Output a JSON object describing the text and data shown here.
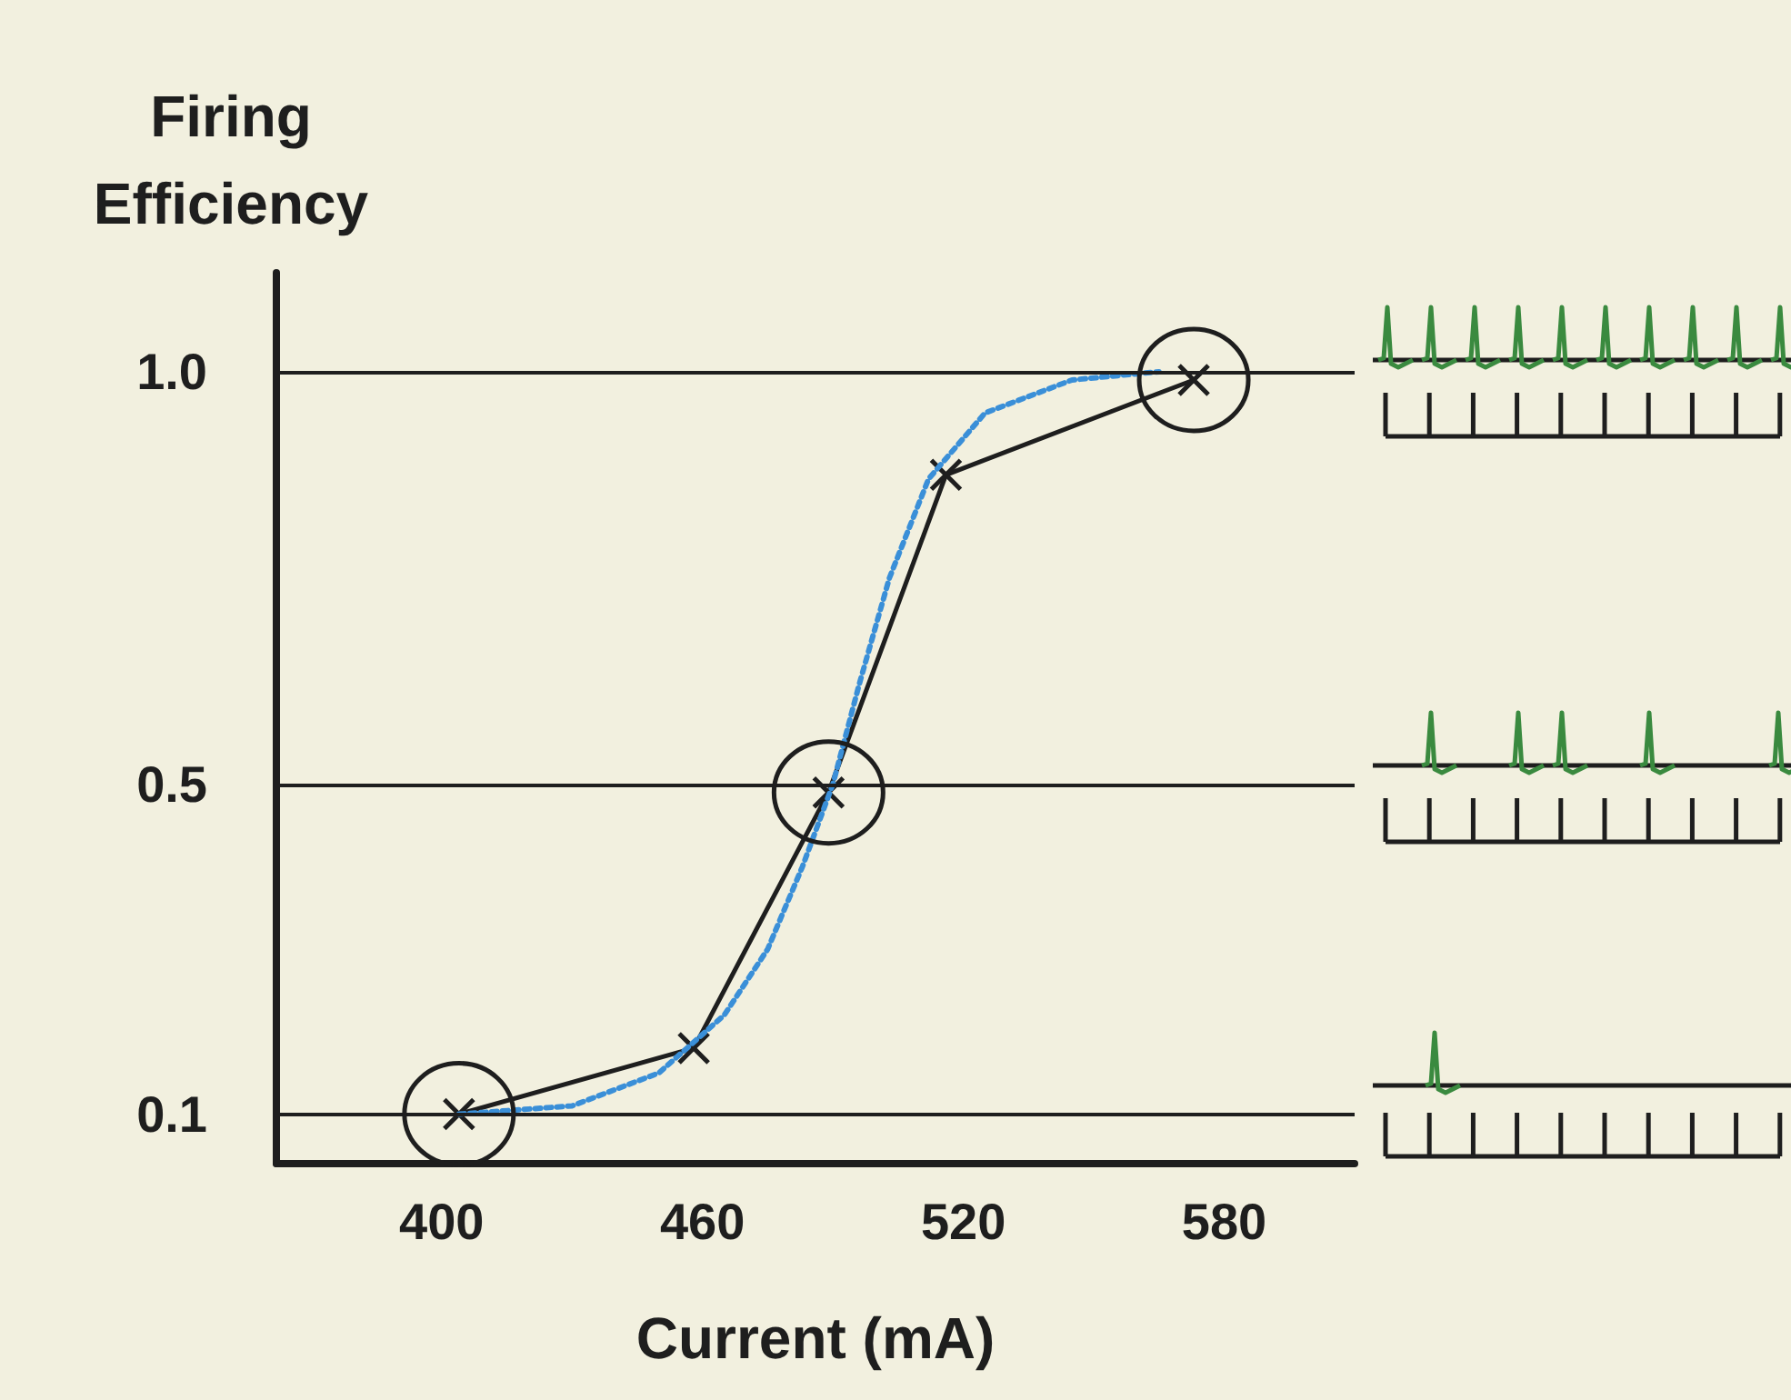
{
  "chart_data": {
    "type": "line",
    "xlabel": "Current (mA)",
    "ylabel": "Firing Efficiency",
    "xlim": [
      362,
      610
    ],
    "xticks": [
      400,
      460,
      520,
      580
    ],
    "ylim": [
      0.04,
      1.12
    ],
    "yticks": [
      0.1,
      0.5,
      {
        "value": 1,
        "label": "1.0"
      }
    ],
    "grid": false,
    "series": [
      {
        "color": "#1e1e1e",
        "marker": "cross",
        "line_style": "solid",
        "x": [
          404,
          458,
          489,
          516,
          573
        ],
        "values": [
          0.1,
          0.18,
          0.49,
          0.875,
          0.99
        ]
      },
      {
        "color": "#3a8fd8",
        "marker": "none",
        "line_style": "dotted",
        "x": [
          404,
          430,
          450,
          465,
          475,
          483,
          490,
          496,
          503,
          512,
          525,
          545,
          565
        ],
        "values": [
          0.1,
          0.11,
          0.15,
          0.22,
          0.3,
          0.4,
          0.5,
          0.62,
          0.75,
          0.87,
          0.95,
          0.99,
          1.0
        ]
      }
    ],
    "ref_lines": [
      {
        "axis": "y",
        "value": 0.1
      },
      {
        "axis": "y",
        "value": 0.5
      },
      {
        "axis": "y",
        "value": 1.0
      }
    ]
  }
}
